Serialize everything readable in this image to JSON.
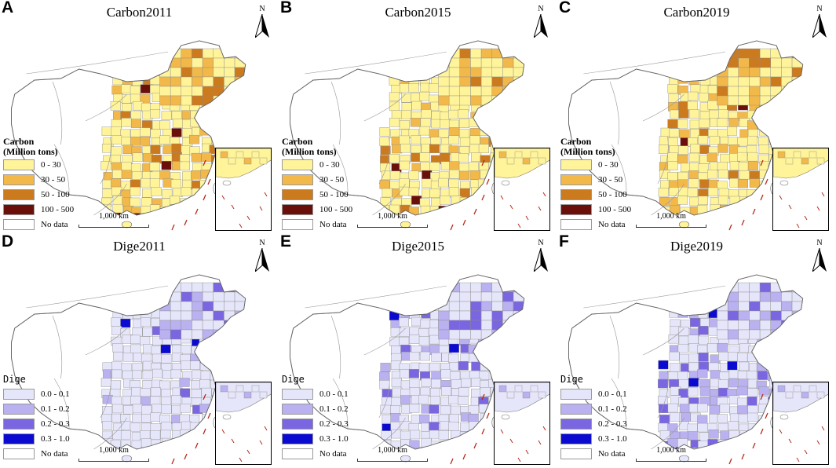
{
  "panels": [
    {
      "letter": "A",
      "title": "Carbon2011",
      "scheme": "carbon"
    },
    {
      "letter": "B",
      "title": "Carbon2015",
      "scheme": "carbon"
    },
    {
      "letter": "C",
      "title": "Carbon2019",
      "scheme": "carbon"
    },
    {
      "letter": "D",
      "title": "Dige2011",
      "scheme": "dige"
    },
    {
      "letter": "E",
      "title": "Dige2015",
      "scheme": "dige"
    },
    {
      "letter": "F",
      "title": "Dige2019",
      "scheme": "dige"
    }
  ],
  "north_label": "N",
  "scale_label": "1,000 km",
  "legend_carbon": {
    "title_line1": "Carbon",
    "title_line2": "(Million tons)",
    "classes": [
      {
        "label": "0 - 30",
        "color": "#fff49a"
      },
      {
        "label": "30 - 50",
        "color": "#f2b94a"
      },
      {
        "label": "50 - 100",
        "color": "#cc7a1e"
      },
      {
        "label": "100 - 500",
        "color": "#6b0f0a"
      },
      {
        "label": "No data",
        "color": "#ffffff"
      }
    ]
  },
  "legend_dige": {
    "title": "Dige",
    "classes": [
      {
        "label": "0.0 - 0.1",
        "color": "#e6e6fa"
      },
      {
        "label": "0.1 - 0.2",
        "color": "#b9b1f0"
      },
      {
        "label": "0.2 - 0.3",
        "color": "#7a66e0"
      },
      {
        "label": "0.3 - 1.0",
        "color": "#0a0ad0"
      },
      {
        "label": "No data",
        "color": "#ffffff"
      }
    ]
  }
}
